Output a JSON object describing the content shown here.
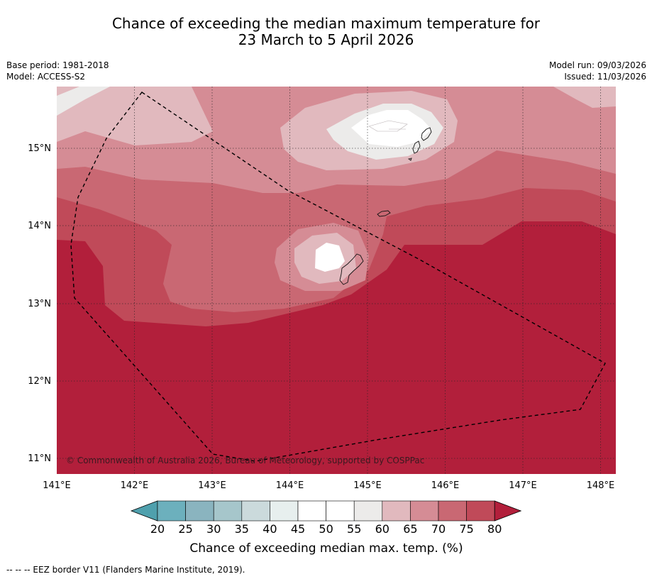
{
  "title_line1": "Chance of exceeding the median maximum temperature for",
  "title_line2": "23 March to 5 April 2026",
  "base_period": "Base period: 1981-2018",
  "model": "Model: ACCESS-S2",
  "model_run": "Model run: 09/03/2026",
  "issued": "Issued: 11/03/2026",
  "copyright": "© Commonwealth of Australia 2026, Bureau of Meteorology, supported by COSPPac",
  "footnote": "--  --  -- EEZ border V11 (Flanders Marine Institute, 2019).",
  "map": {
    "lon_range": [
      141,
      148.2
    ],
    "lat_range": [
      10.8,
      15.8
    ],
    "lon_ticks": [
      "141°E",
      "142°E",
      "143°E",
      "144°E",
      "145°E",
      "146°E",
      "147°E",
      "148°E"
    ],
    "lat_ticks": [
      "15°N",
      "14°N",
      "13°N",
      "12°N",
      "11°N"
    ]
  },
  "colorbar": {
    "title": "Chance of exceeding median max. temp. (%)",
    "ticks": [
      "20",
      "25",
      "30",
      "35",
      "40",
      "45",
      "50",
      "55",
      "60",
      "65",
      "70",
      "75",
      "80"
    ],
    "colors": [
      "#4fa0ad",
      "#6cb0bd",
      "#8ab4bf",
      "#a6c6cb",
      "#cbdadc",
      "#e7efee",
      "#ffffff",
      "#ffffff",
      "#ecebea",
      "#e1b9be",
      "#d58c95",
      "#c96873",
      "#c04a59",
      "#b21f3b"
    ]
  },
  "palette": {
    "p80": "#b21f3b",
    "p75": "#c04a59",
    "p70": "#c96873",
    "p65": "#d58c95",
    "p60": "#e1b9be",
    "p55": "#ecebea",
    "p50": "#ffffff"
  }
}
